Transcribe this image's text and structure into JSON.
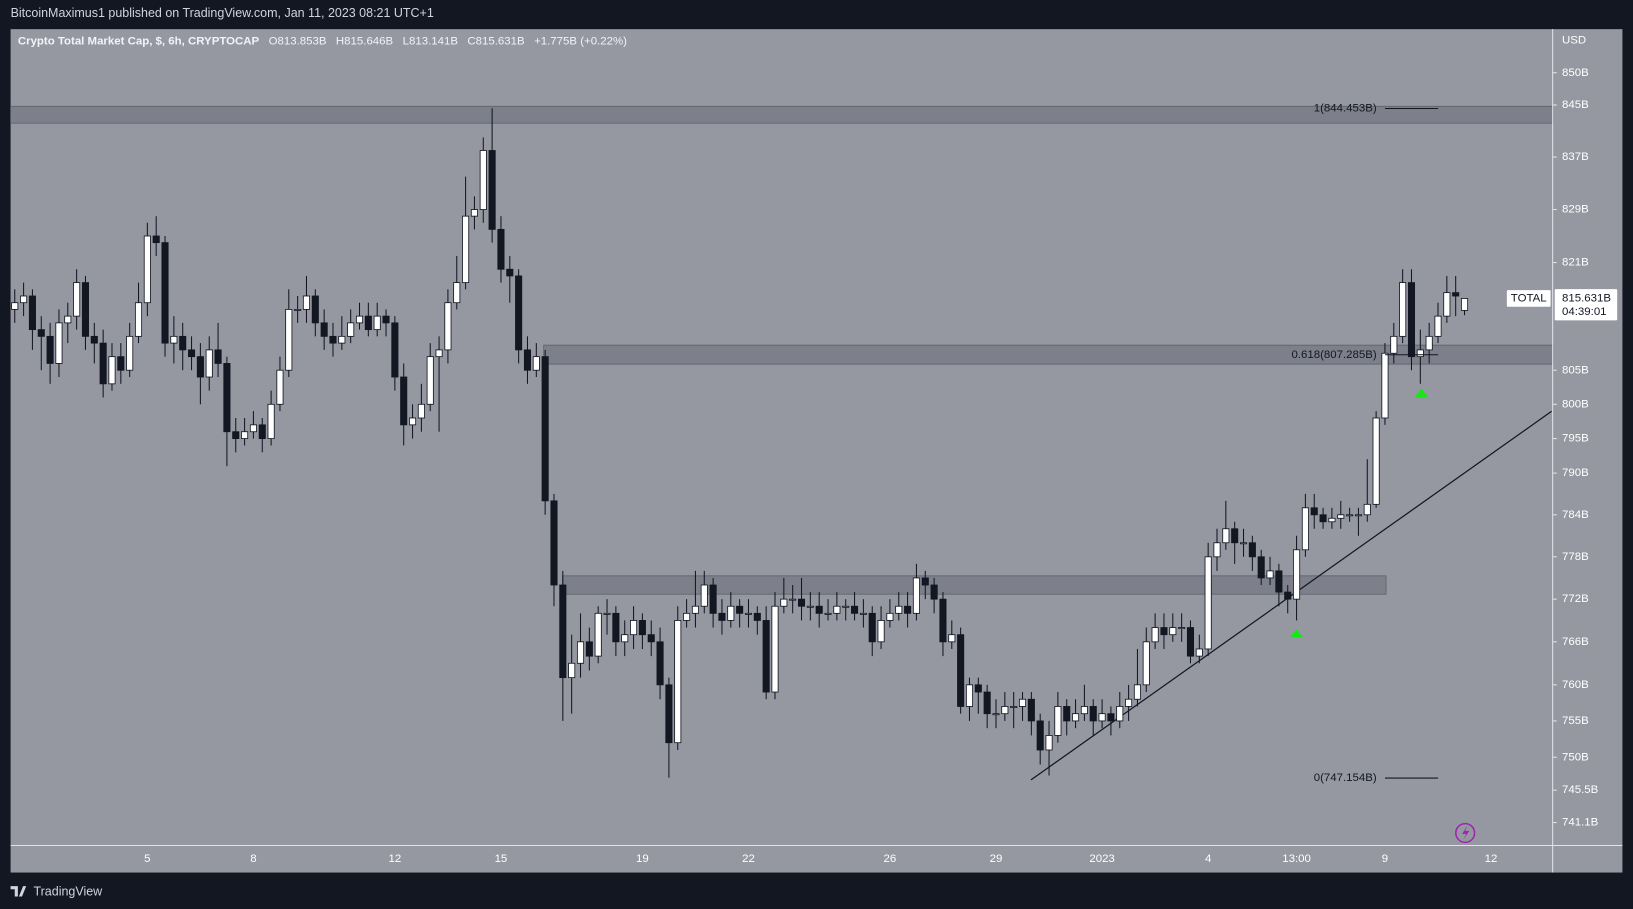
{
  "header": {
    "published": "BitcoinMaximus1 published on TradingView.com, Jan 11, 2023 08:21 UTC+1",
    "symbol": "Crypto Total Market Cap, $, 6h, CRYPTOCAP",
    "ohlc": [
      {
        "key": "O",
        "text": "813.853B"
      },
      {
        "key": "H",
        "text": "815.646B"
      },
      {
        "key": "L",
        "text": "813.141B"
      },
      {
        "key": "C",
        "text": "815.631B"
      }
    ],
    "change": "+1.775B (+0.22%)",
    "currency": "USD",
    "footer": "TradingView"
  },
  "chart_data": {
    "type": "candlestick",
    "log_scale": true,
    "up_color": "#ffffff",
    "down_color": "#131722",
    "categories": [
      null,
      null,
      null,
      null,
      null,
      null,
      null,
      null,
      null,
      null,
      null,
      null,
      null,
      null,
      null,
      "5",
      null,
      null,
      null,
      null,
      null,
      null,
      null,
      null,
      null,
      null,
      null,
      "8",
      null,
      null,
      null,
      null,
      null,
      null,
      null,
      null,
      null,
      null,
      null,
      null,
      null,
      null,
      null,
      "12",
      null,
      null,
      null,
      null,
      null,
      null,
      null,
      null,
      null,
      null,
      null,
      "15",
      null,
      null,
      null,
      null,
      null,
      null,
      null,
      null,
      null,
      null,
      null,
      null,
      null,
      null,
      null,
      "19",
      null,
      null,
      null,
      null,
      null,
      null,
      null,
      null,
      null,
      null,
      null,
      "22",
      null,
      null,
      null,
      null,
      null,
      null,
      null,
      null,
      null,
      null,
      null,
      null,
      null,
      null,
      null,
      "26",
      null,
      null,
      null,
      null,
      null,
      null,
      null,
      null,
      null,
      null,
      null,
      "29",
      null,
      null,
      null,
      null,
      null,
      null,
      null,
      null,
      null,
      null,
      null,
      "2023",
      null,
      null,
      null,
      null,
      null,
      null,
      null,
      null,
      null,
      null,
      null,
      "4",
      null,
      null,
      null,
      null,
      null,
      null,
      null,
      null,
      null,
      "13:00",
      null,
      null,
      null,
      null,
      null,
      null,
      null,
      null,
      null,
      "9",
      null,
      null,
      null,
      null,
      null,
      null,
      null,
      null,
      null,
      null,
      null,
      "12"
    ],
    "open": [
      814,
      815,
      816,
      811,
      810,
      806,
      812,
      813,
      818,
      810,
      809,
      803,
      807,
      805,
      810,
      815,
      825,
      824,
      809,
      810,
      808,
      807,
      804,
      808,
      806,
      796,
      795,
      796,
      797,
      795,
      800,
      805,
      814,
      814,
      816,
      812,
      810,
      809,
      810,
      812,
      813,
      811,
      813,
      812,
      804,
      797,
      798,
      800,
      807,
      808,
      815,
      818,
      828,
      829,
      838,
      826,
      820,
      819,
      808,
      805,
      807,
      786,
      774,
      761,
      763,
      766,
      764,
      770,
      770,
      766,
      767,
      769,
      767,
      766,
      760,
      752,
      769,
      770,
      771,
      774,
      770,
      769,
      771,
      770,
      770,
      769,
      759,
      771,
      772,
      772,
      771,
      771,
      770,
      770,
      771,
      771,
      770,
      770,
      766,
      769,
      770,
      771,
      770,
      775,
      774,
      772,
      766,
      767,
      757,
      760,
      759,
      756,
      756,
      757,
      757,
      758,
      755,
      751,
      753,
      757,
      755,
      756,
      757,
      755,
      756,
      755,
      757,
      758,
      760,
      766,
      768,
      767,
      768,
      768,
      764,
      765,
      778,
      780,
      782,
      780,
      780,
      778,
      775,
      776,
      773,
      772,
      779,
      785,
      784,
      783,
      783.5,
      784,
      784,
      784,
      785.5,
      798,
      807.5,
      810,
      818,
      807,
      808,
      810,
      813,
      816.5,
      813.853,
      null,
      null,
      null
    ],
    "high": [
      817,
      818,
      817,
      813,
      812,
      814,
      815,
      820,
      819,
      812,
      811,
      809,
      809,
      812,
      818,
      827,
      828,
      825,
      813,
      812,
      810,
      809,
      810,
      812,
      807,
      798,
      798,
      799,
      798,
      802,
      807,
      817,
      816,
      819,
      817,
      814,
      812,
      813,
      814,
      815,
      815,
      815,
      814,
      813,
      806,
      800,
      803,
      809,
      810,
      817,
      822,
      834,
      831,
      840,
      844.5,
      828,
      822,
      820,
      810,
      809,
      808,
      787,
      776,
      767,
      770,
      768,
      771,
      772,
      771,
      769,
      771,
      770,
      769,
      768,
      761,
      771,
      772,
      776,
      776,
      775,
      772,
      773,
      772,
      772,
      771,
      771,
      773,
      775,
      774,
      775,
      773,
      773,
      772,
      773,
      772,
      773,
      772,
      771,
      771,
      772,
      773,
      773,
      777,
      776,
      775,
      773,
      769,
      768,
      761,
      761,
      760,
      758,
      759,
      759,
      759,
      759,
      756,
      755,
      759,
      758,
      758,
      760,
      758,
      758,
      757,
      759,
      760,
      765,
      768,
      770,
      770,
      770,
      770,
      769,
      767,
      780,
      782,
      786,
      783,
      782,
      781,
      779,
      778,
      777,
      774,
      781,
      787,
      787,
      785,
      785,
      786,
      785,
      785,
      792,
      799,
      809,
      812,
      820,
      820,
      811,
      812,
      815,
      819,
      819,
      815.646,
      null,
      null,
      null
    ],
    "low": [
      812,
      813,
      808,
      805,
      803,
      804,
      809,
      811,
      808,
      806,
      801,
      802,
      803,
      804,
      809,
      813,
      822,
      807,
      806,
      805,
      805,
      800,
      802,
      804,
      791,
      793,
      794,
      795,
      793,
      794,
      799,
      804,
      812,
      812,
      810,
      808,
      807,
      808,
      809,
      811,
      810,
      810,
      810,
      802,
      794,
      795,
      796,
      799,
      796,
      806,
      814,
      817,
      826,
      827,
      824,
      818,
      815,
      806,
      803,
      804,
      784,
      771,
      755,
      756,
      761,
      762,
      763,
      767,
      764,
      764,
      765,
      765,
      764,
      758,
      747.2,
      751,
      768,
      768,
      770,
      768,
      767,
      768,
      768,
      768,
      767,
      758,
      758,
      770,
      770,
      769,
      769,
      768,
      769,
      769,
      769,
      769,
      768,
      764,
      765,
      768,
      769,
      768,
      769,
      772,
      770,
      764,
      765,
      756,
      755,
      756,
      754,
      754,
      755,
      754,
      755,
      753,
      749,
      747.5,
      752,
      753,
      754,
      755,
      753,
      754,
      753,
      754,
      755,
      757,
      759,
      765,
      765,
      766,
      766,
      763,
      763,
      764,
      776,
      779,
      777,
      778,
      776,
      774,
      774,
      771,
      770,
      769,
      778,
      782,
      782,
      782,
      782,
      783,
      781,
      783,
      785,
      797,
      806,
      809,
      805,
      803,
      806,
      809,
      812,
      813,
      813.141,
      null,
      null,
      null
    ],
    "close": [
      815,
      816,
      811,
      810,
      806,
      812,
      813,
      818,
      810,
      809,
      803,
      807,
      805,
      810,
      815,
      825,
      824,
      809,
      810,
      808,
      807,
      804,
      808,
      806,
      796,
      795,
      796,
      797,
      795,
      800,
      805,
      814,
      814,
      816,
      812,
      810,
      809,
      810,
      812,
      813,
      811,
      813,
      812,
      804,
      797,
      798,
      800,
      807,
      808,
      815,
      818,
      828,
      829,
      838,
      826,
      820,
      819,
      808,
      805,
      807,
      786,
      774,
      761,
      763,
      766,
      764,
      770,
      770,
      766,
      767,
      769,
      767,
      766,
      760,
      752,
      769,
      770,
      771,
      774,
      770,
      769,
      771,
      770,
      770,
      769,
      759,
      771,
      772,
      772,
      771,
      771,
      770,
      770,
      771,
      771,
      770,
      770,
      766,
      769,
      770,
      771,
      770,
      775,
      774,
      772,
      766,
      767,
      757,
      760,
      759,
      756,
      756,
      757,
      757,
      758,
      755,
      751,
      753,
      757,
      755,
      756,
      757,
      755,
      756,
      755,
      757,
      758,
      760,
      766,
      768,
      767,
      768,
      768,
      764,
      765,
      778,
      780,
      782,
      780,
      780,
      778,
      775,
      776,
      773,
      772,
      779,
      785,
      784,
      783,
      783.5,
      784,
      784,
      784,
      785.5,
      798,
      807.5,
      810,
      818,
      807,
      808,
      810,
      813,
      816.5,
      816,
      815.631,
      null,
      null,
      null
    ],
    "ylim": [
      738,
      856.8
    ],
    "yticks": [
      {
        "value": 850,
        "label": "850B"
      },
      {
        "value": 845,
        "label": "845B"
      },
      {
        "value": 837,
        "label": "837B"
      },
      {
        "value": 829,
        "label": "829B"
      },
      {
        "value": 821,
        "label": "821B"
      },
      {
        "value": 805,
        "label": "805B"
      },
      {
        "value": 800,
        "label": "800B"
      },
      {
        "value": 795,
        "label": "795B"
      },
      {
        "value": 790,
        "label": "790B"
      },
      {
        "value": 784,
        "label": "784B"
      },
      {
        "value": 778,
        "label": "778B"
      },
      {
        "value": 772,
        "label": "772B"
      },
      {
        "value": 766,
        "label": "766B"
      },
      {
        "value": 760,
        "label": "760B"
      },
      {
        "value": 755,
        "label": "755B"
      },
      {
        "value": 750,
        "label": "750B"
      },
      {
        "value": 745.5,
        "label": "745.5B"
      },
      {
        "value": 741.1,
        "label": "741.1B"
      }
    ],
    "zones": [
      {
        "low": 842.2,
        "high": 844.8
      },
      {
        "low": 805.9,
        "high": 808.7
      },
      {
        "low": 772.7,
        "high": 775.3
      }
    ],
    "fib_levels": [
      {
        "value": 844.453,
        "label": "1(844.453B)"
      },
      {
        "value": 807.285,
        "label": "0.618(807.285B)"
      },
      {
        "value": 747.154,
        "label": "0(747.154B)"
      }
    ],
    "last_price": {
      "value": 815.631,
      "label": "815.631B",
      "tag": "TOTAL",
      "countdown": "04:39:01"
    }
  }
}
